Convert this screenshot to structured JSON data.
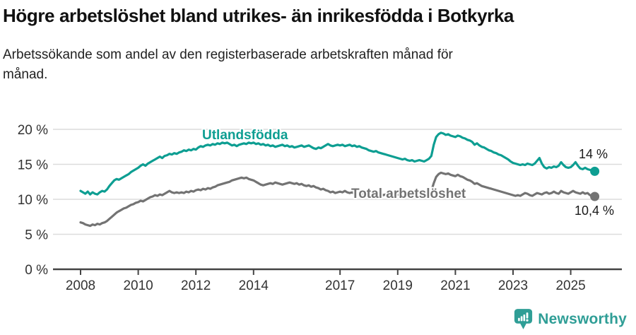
{
  "chart_data": {
    "type": "line",
    "title": "Högre arbetslöshet bland utrikes- än inrikesfödda i Botkyrka",
    "subtitle": "Arbetssökande som andel av den registerbaserade arbetskraften månad för månad.",
    "unit": "%",
    "x_start_year": 2008,
    "x_interval": "monthly",
    "x_tick_years": [
      2008,
      2010,
      2012,
      2014,
      2017,
      2019,
      2021,
      2023,
      2025
    ],
    "y_ticks": [
      0,
      5,
      10,
      15,
      20
    ],
    "y_tick_suffix": " %",
    "ylim": [
      0,
      20
    ],
    "grid": "horizontal",
    "legend_position": "inline-labels",
    "series": [
      {
        "name": "Utlandsfödda",
        "color": "#0d9e92",
        "end_label": "14 %",
        "end_value": 14.0,
        "values": [
          11.2,
          11.0,
          10.8,
          11.1,
          10.7,
          11.0,
          10.8,
          10.7,
          11.0,
          11.2,
          11.1,
          11.4,
          11.9,
          12.3,
          12.7,
          12.9,
          12.8,
          13.0,
          13.2,
          13.4,
          13.6,
          13.9,
          14.1,
          14.3,
          14.5,
          14.8,
          15.0,
          14.8,
          15.1,
          15.3,
          15.5,
          15.7,
          15.9,
          16.1,
          15.9,
          16.2,
          16.3,
          16.5,
          16.4,
          16.6,
          16.5,
          16.7,
          16.8,
          17.0,
          16.9,
          17.1,
          17.0,
          17.2,
          17.1,
          17.4,
          17.6,
          17.5,
          17.7,
          17.8,
          17.7,
          17.9,
          17.8,
          18.0,
          17.9,
          18.1,
          18.0,
          18.1,
          17.9,
          17.7,
          17.8,
          17.6,
          17.8,
          17.9,
          18.0,
          17.9,
          18.1,
          18.0,
          18.1,
          17.9,
          18.0,
          17.8,
          17.9,
          17.7,
          17.8,
          17.6,
          17.7,
          17.5,
          17.6,
          17.7,
          17.8,
          17.6,
          17.7,
          17.5,
          17.6,
          17.4,
          17.5,
          17.6,
          17.7,
          17.5,
          17.6,
          17.7,
          17.5,
          17.3,
          17.2,
          17.4,
          17.3,
          17.5,
          17.7,
          17.9,
          17.7,
          17.6,
          17.7,
          17.8,
          17.7,
          17.8,
          17.6,
          17.7,
          17.8,
          17.6,
          17.7,
          17.5,
          17.6,
          17.4,
          17.3,
          17.2,
          17.0,
          16.9,
          16.8,
          16.9,
          16.7,
          16.6,
          16.5,
          16.4,
          16.3,
          16.2,
          16.1,
          16.0,
          15.9,
          15.8,
          15.7,
          15.8,
          15.6,
          15.5,
          15.6,
          15.4,
          15.5,
          15.6,
          15.5,
          15.4,
          15.6,
          15.8,
          16.2,
          17.8,
          18.9,
          19.3,
          19.5,
          19.4,
          19.2,
          19.3,
          19.1,
          19.0,
          18.9,
          19.1,
          19.0,
          18.8,
          18.7,
          18.5,
          18.4,
          18.2,
          17.8,
          18.0,
          17.7,
          17.5,
          17.4,
          17.2,
          17.0,
          16.9,
          16.7,
          16.6,
          16.4,
          16.3,
          16.1,
          15.9,
          15.7,
          15.4,
          15.2,
          15.1,
          15.0,
          14.9,
          15.0,
          14.9,
          15.1,
          15.0,
          14.9,
          15.1,
          15.5,
          15.9,
          15.1,
          14.6,
          14.4,
          14.6,
          14.5,
          14.7,
          14.6,
          14.8,
          15.3,
          14.9,
          14.6,
          14.5,
          14.6,
          14.9,
          15.3,
          14.8,
          14.4,
          14.3,
          14.5,
          14.3,
          14.2,
          14.1,
          14.0
        ]
      },
      {
        "name": "Total arbetslöshet",
        "color": "#737373",
        "end_label": "10,4 %",
        "end_value": 10.4,
        "values": [
          6.7,
          6.6,
          6.4,
          6.3,
          6.2,
          6.4,
          6.3,
          6.5,
          6.4,
          6.6,
          6.7,
          6.9,
          7.2,
          7.5,
          7.8,
          8.1,
          8.3,
          8.5,
          8.7,
          8.8,
          9.0,
          9.2,
          9.3,
          9.5,
          9.6,
          9.8,
          9.7,
          9.9,
          10.1,
          10.3,
          10.4,
          10.6,
          10.5,
          10.7,
          10.6,
          10.8,
          11.0,
          11.2,
          11.0,
          10.9,
          11.0,
          10.9,
          11.0,
          10.9,
          11.1,
          11.0,
          11.2,
          11.1,
          11.3,
          11.4,
          11.3,
          11.5,
          11.4,
          11.6,
          11.5,
          11.7,
          11.8,
          12.0,
          12.1,
          12.2,
          12.3,
          12.4,
          12.5,
          12.7,
          12.8,
          12.9,
          13.0,
          13.1,
          13.0,
          13.1,
          12.9,
          12.8,
          12.7,
          12.5,
          12.3,
          12.1,
          12.0,
          12.1,
          12.2,
          12.3,
          12.2,
          12.4,
          12.3,
          12.2,
          12.1,
          12.2,
          12.3,
          12.4,
          12.3,
          12.2,
          12.3,
          12.1,
          12.2,
          12.0,
          11.9,
          12.0,
          11.8,
          11.9,
          11.7,
          11.6,
          11.4,
          11.5,
          11.3,
          11.2,
          11.0,
          11.1,
          10.9,
          11.0,
          11.1,
          11.0,
          11.2,
          11.0,
          10.9,
          11.0,
          10.8,
          10.9,
          10.7,
          10.8,
          10.9,
          10.8,
          10.9,
          10.7,
          10.8,
          10.6,
          10.7,
          10.8,
          10.6,
          10.7,
          10.5,
          10.6,
          10.7,
          10.6,
          10.7,
          10.5,
          10.6,
          10.5,
          10.6,
          10.7,
          10.6,
          10.5,
          10.6,
          10.7,
          10.6,
          10.7,
          10.8,
          11.0,
          11.2,
          12.3,
          13.2,
          13.6,
          13.8,
          13.7,
          13.6,
          13.7,
          13.5,
          13.4,
          13.3,
          13.5,
          13.3,
          13.2,
          13.0,
          12.8,
          12.7,
          12.5,
          12.2,
          12.3,
          12.1,
          11.9,
          11.8,
          11.7,
          11.6,
          11.5,
          11.4,
          11.3,
          11.2,
          11.1,
          11.0,
          10.9,
          10.8,
          10.7,
          10.6,
          10.5,
          10.6,
          10.5,
          10.7,
          10.9,
          10.8,
          10.6,
          10.5,
          10.7,
          10.9,
          10.8,
          10.7,
          10.9,
          11.0,
          10.8,
          10.9,
          11.1,
          10.9,
          10.8,
          11.2,
          11.0,
          10.9,
          10.8,
          11.0,
          11.2,
          11.0,
          10.9,
          10.8,
          11.0,
          10.8,
          10.9,
          10.6,
          10.5,
          10.4
        ]
      }
    ]
  },
  "footer": {
    "brand": "Newsworthy",
    "logo_color": "#2f9e96"
  }
}
